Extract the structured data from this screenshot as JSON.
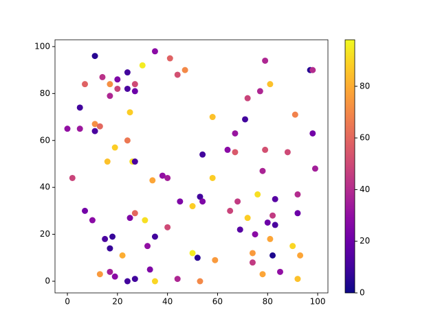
{
  "chart_data": {
    "type": "scatter",
    "x": [
      11,
      35,
      30,
      41,
      47,
      24,
      44,
      97,
      98,
      79,
      7,
      14,
      17,
      20,
      20,
      24,
      27,
      27,
      17,
      81,
      77,
      72,
      5,
      25,
      0,
      5,
      11,
      13,
      11,
      58,
      71,
      91,
      67,
      98,
      24,
      19,
      16,
      26,
      27,
      54,
      64,
      67,
      79,
      88,
      99,
      78,
      2,
      38,
      40,
      34,
      58,
      53,
      54,
      45,
      68,
      76,
      83,
      92,
      50,
      65,
      7,
      10,
      27,
      25,
      31,
      72,
      40,
      69,
      80,
      83,
      82,
      92,
      15,
      18,
      35,
      75,
      81,
      32,
      17,
      90,
      22,
      50,
      52,
      74,
      74,
      82,
      93,
      13,
      17,
      19,
      24,
      27,
      33,
      35,
      44,
      53,
      59,
      78,
      85,
      92
    ],
    "y": [
      96,
      98,
      92,
      95,
      90,
      89,
      88,
      90,
      90,
      94,
      84,
      87,
      84,
      86,
      82,
      82,
      84,
      81,
      79,
      84,
      81,
      78,
      74,
      72,
      65,
      65,
      67,
      66,
      64,
      70,
      69,
      71,
      63,
      63,
      60,
      57,
      51,
      51,
      51,
      54,
      56,
      55,
      56,
      55,
      48,
      47,
      44,
      45,
      44,
      43,
      44,
      36,
      34,
      34,
      34,
      37,
      35,
      37,
      32,
      30,
      30,
      26,
      29,
      27,
      26,
      27,
      23,
      22,
      25,
      24,
      28,
      29,
      18,
      19,
      19,
      20,
      18,
      15,
      14,
      15,
      11,
      12,
      10,
      12,
      8,
      11,
      11,
      3,
      4,
      2,
      0,
      1,
      5,
      0,
      1,
      0,
      9,
      3,
      4,
      1
    ],
    "c": [
      5,
      28,
      95,
      58,
      70,
      10,
      52,
      5,
      40,
      38,
      58,
      42,
      72,
      25,
      48,
      12,
      50,
      20,
      38,
      85,
      38,
      48,
      10,
      88,
      30,
      33,
      72,
      60,
      12,
      85,
      10,
      68,
      32,
      22,
      65,
      88,
      85,
      92,
      12,
      10,
      28,
      55,
      52,
      50,
      35,
      37,
      48,
      30,
      35,
      78,
      88,
      10,
      25,
      25,
      45,
      92,
      15,
      40,
      88,
      48,
      22,
      28,
      60,
      25,
      92,
      88,
      50,
      15,
      20,
      12,
      45,
      20,
      12,
      8,
      10,
      28,
      78,
      30,
      8,
      90,
      80,
      95,
      5,
      75,
      45,
      3,
      78,
      75,
      35,
      28,
      10,
      10,
      25,
      90,
      38,
      70,
      75,
      78,
      30,
      85
    ],
    "colormap": "plasma",
    "clim": [
      0,
      98
    ],
    "cticks": [
      0,
      20,
      40,
      60,
      80
    ],
    "xlim": [
      -4.95,
      104.1
    ],
    "ylim": [
      -4.97,
      102.9
    ],
    "xticks": [
      0,
      20,
      40,
      60,
      80,
      100
    ],
    "yticks": [
      0,
      20,
      40,
      60,
      80,
      100
    ]
  }
}
